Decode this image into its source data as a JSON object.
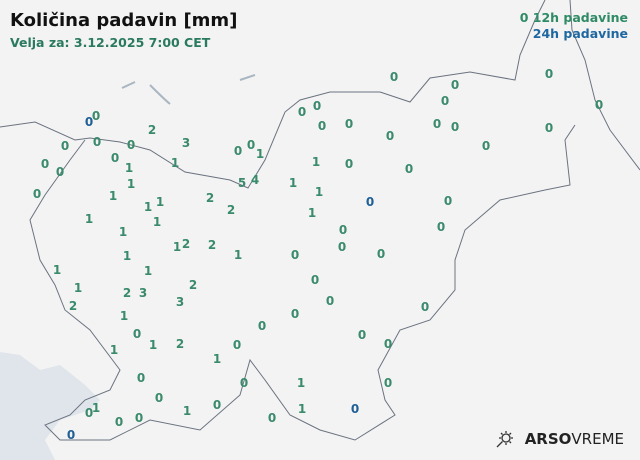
{
  "header": {
    "title": "Količina padavin [mm]",
    "subtitle": "Velja za: 3.12.2025 7:00 CET"
  },
  "legend": {
    "item_12h": "12h padavine",
    "item_12h_marker": "0",
    "item_24h": "24h padavine",
    "color_12h": "#3a8a6c",
    "color_24h": "#1f5f96"
  },
  "logo": {
    "brand": "ARSO",
    "suffix": "VREME",
    "icon": "sun-cloud-icon"
  },
  "map": {
    "land_color": "#f3f3f3",
    "sea_color": "#dfe5ea",
    "border_color": "#6b7380"
  },
  "stations": [
    {
      "v": "0",
      "t": "12h"
    },
    {
      "v": "0",
      "t": "12h"
    },
    {
      "v": "0",
      "t": "12h"
    },
    {
      "v": "0",
      "t": "12h"
    },
    {
      "v": "0",
      "t": "12h"
    },
    {
      "v": "0",
      "t": "12h"
    },
    {
      "v": "0",
      "t": "12h"
    },
    {
      "v": "0",
      "t": "12h"
    },
    {
      "v": "0",
      "t": "24h"
    },
    {
      "v": "0",
      "t": "12h"
    },
    {
      "v": "0",
      "t": "12h"
    },
    {
      "v": "0",
      "t": "12h"
    },
    {
      "v": "0",
      "t": "12h"
    },
    {
      "v": "0",
      "t": "12h"
    },
    {
      "v": "0",
      "t": "12h"
    },
    {
      "v": "2",
      "t": "12h"
    },
    {
      "v": "3",
      "t": "12h"
    },
    {
      "v": "0",
      "t": "12h"
    },
    {
      "v": "0",
      "t": "12h"
    },
    {
      "v": "0",
      "t": "12h"
    },
    {
      "v": "0",
      "t": "12h"
    },
    {
      "v": "0",
      "t": "12h"
    },
    {
      "v": "1",
      "t": "12h"
    },
    {
      "v": "0",
      "t": "12h"
    },
    {
      "v": "0",
      "t": "12h"
    },
    {
      "v": "0",
      "t": "12h"
    },
    {
      "v": "1",
      "t": "12h"
    },
    {
      "v": "1",
      "t": "12h"
    },
    {
      "v": "0",
      "t": "12h"
    },
    {
      "v": "0",
      "t": "12h"
    },
    {
      "v": "1",
      "t": "12h"
    },
    {
      "v": "0",
      "t": "12h"
    },
    {
      "v": "0",
      "t": "12h"
    },
    {
      "v": "1",
      "t": "12h"
    },
    {
      "v": "5",
      "t": "12h"
    },
    {
      "v": "4",
      "t": "12h"
    },
    {
      "v": "1",
      "t": "12h"
    },
    {
      "v": "1",
      "t": "12h"
    },
    {
      "v": "1",
      "t": "12h"
    },
    {
      "v": "0",
      "t": "24h"
    },
    {
      "v": "0",
      "t": "12h"
    },
    {
      "v": "2",
      "t": "12h"
    },
    {
      "v": "2",
      "t": "12h"
    },
    {
      "v": "1",
      "t": "12h"
    },
    {
      "v": "1",
      "t": "12h"
    },
    {
      "v": "1",
      "t": "12h"
    },
    {
      "v": "1",
      "t": "12h"
    },
    {
      "v": "1",
      "t": "12h"
    },
    {
      "v": "1",
      "t": "12h"
    },
    {
      "v": "0",
      "t": "12h"
    },
    {
      "v": "0",
      "t": "12h"
    },
    {
      "v": "1",
      "t": "12h"
    },
    {
      "v": "2",
      "t": "12h"
    },
    {
      "v": "2",
      "t": "12h"
    },
    {
      "v": "1",
      "t": "12h"
    },
    {
      "v": "0",
      "t": "12h"
    },
    {
      "v": "0",
      "t": "12h"
    },
    {
      "v": "0",
      "t": "12h"
    },
    {
      "v": "1",
      "t": "12h"
    },
    {
      "v": "1",
      "t": "12h"
    },
    {
      "v": "1",
      "t": "12h"
    },
    {
      "v": "0",
      "t": "12h"
    },
    {
      "v": "1",
      "t": "12h"
    },
    {
      "v": "2",
      "t": "12h"
    },
    {
      "v": "2",
      "t": "12h"
    },
    {
      "v": "3",
      "t": "12h"
    },
    {
      "v": "2",
      "t": "12h"
    },
    {
      "v": "3",
      "t": "12h"
    },
    {
      "v": "0",
      "t": "12h"
    },
    {
      "v": "0",
      "t": "12h"
    },
    {
      "v": "1",
      "t": "12h"
    },
    {
      "v": "0",
      "t": "12h"
    },
    {
      "v": "0",
      "t": "12h"
    },
    {
      "v": "0",
      "t": "12h"
    },
    {
      "v": "0",
      "t": "12h"
    },
    {
      "v": "0",
      "t": "12h"
    },
    {
      "v": "1",
      "t": "12h"
    },
    {
      "v": "2",
      "t": "12h"
    },
    {
      "v": "1",
      "t": "12h"
    },
    {
      "v": "0",
      "t": "12h"
    },
    {
      "v": "1",
      "t": "12h"
    },
    {
      "v": "0",
      "t": "12h"
    },
    {
      "v": "1",
      "t": "12h"
    },
    {
      "v": "0",
      "t": "12h"
    },
    {
      "v": "0",
      "t": "12h"
    },
    {
      "v": "0",
      "t": "12h"
    },
    {
      "v": "1",
      "t": "12h"
    },
    {
      "v": "0",
      "t": "12h"
    },
    {
      "v": "1",
      "t": "12h"
    },
    {
      "v": "0",
      "t": "12h"
    },
    {
      "v": "0",
      "t": "12h"
    },
    {
      "v": "0",
      "t": "12h"
    },
    {
      "v": "0",
      "t": "12h"
    },
    {
      "v": "1",
      "t": "12h"
    },
    {
      "v": "0",
      "t": "24h"
    },
    {
      "v": "0",
      "t": "24h"
    }
  ]
}
